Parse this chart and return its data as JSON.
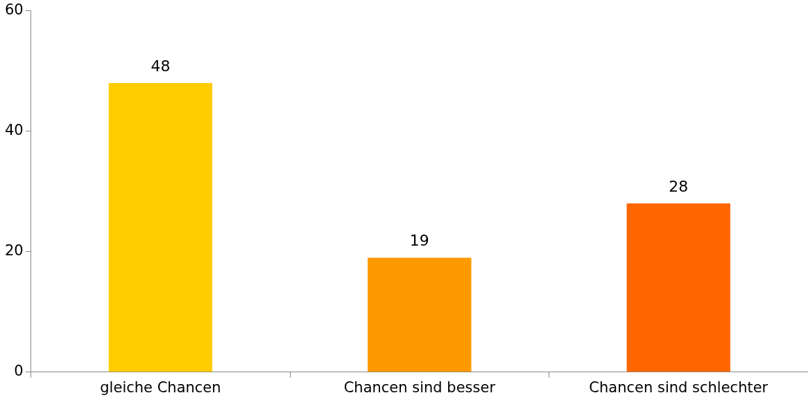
{
  "chart_data": {
    "type": "bar",
    "categories": [
      "gleiche Chancen",
      "Chancen sind besser",
      "Chancen sind schlechter"
    ],
    "values": [
      48,
      19,
      28
    ],
    "colors": [
      "#ffcc00",
      "#ff9900",
      "#ff6600"
    ],
    "ylim": [
      0,
      60
    ],
    "yticks": [
      0,
      20,
      40,
      60
    ],
    "grid": false,
    "legend": false,
    "data_labels": true
  }
}
